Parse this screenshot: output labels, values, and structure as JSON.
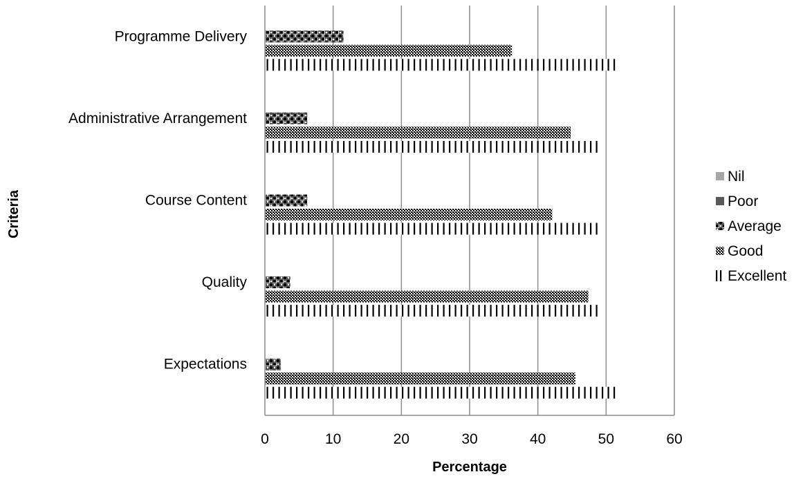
{
  "chart_data": {
    "type": "bar",
    "orientation": "horizontal",
    "title": "",
    "xlabel": "Percentage",
    "ylabel": "Criteria",
    "xlim": [
      0,
      60
    ],
    "xticks": [
      0,
      10,
      20,
      30,
      40,
      50,
      60
    ],
    "grid": "vertical",
    "legend_position": "right",
    "categories": [
      "Programme Delivery",
      "Administrative Arrangement",
      "Course Content",
      "Quality",
      "Expectations"
    ],
    "series": [
      {
        "name": "Nil",
        "values": [
          0,
          0,
          0,
          0,
          0
        ],
        "color": "#a6a6a6",
        "pattern": "solid"
      },
      {
        "name": "Poor",
        "values": [
          0,
          0,
          0,
          0,
          0
        ],
        "color": "#595959",
        "pattern": "solid"
      },
      {
        "name": "Average",
        "values": [
          11.5,
          6.2,
          6.2,
          3.7,
          2.3
        ],
        "color": "#000000",
        "pattern": "checker"
      },
      {
        "name": "Good",
        "values": [
          36.2,
          44.8,
          42.1,
          47.4,
          45.5
        ],
        "color": "#000000",
        "pattern": "dense-grid"
      },
      {
        "name": "Excellent",
        "values": [
          51.9,
          48.8,
          48.8,
          48.8,
          51.5
        ],
        "color": "#000000",
        "pattern": "vertical-lines"
      }
    ]
  }
}
